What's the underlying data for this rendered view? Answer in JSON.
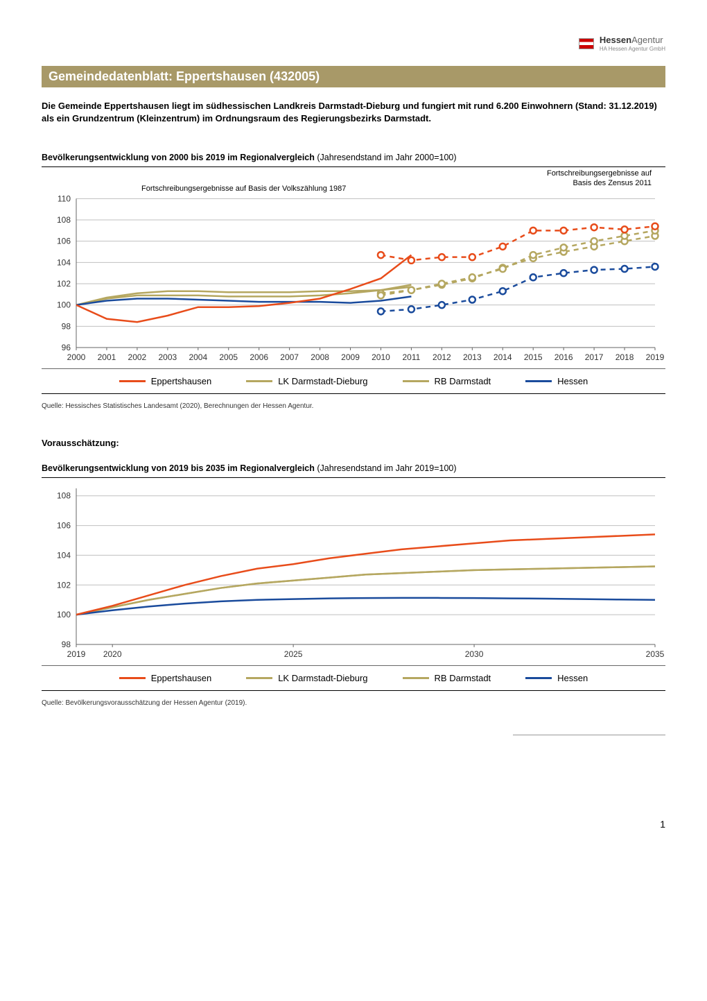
{
  "logo": {
    "brand_bold": "Hessen",
    "brand_light": "Agentur",
    "sub": "HA Hessen Agentur GmbH"
  },
  "title": "Gemeindedatenblatt: Eppertshausen (432005)",
  "intro": "Die Gemeinde Eppertshausen liegt im südhessischen Landkreis Darmstadt-Dieburg und fungiert mit rund 6.200 Einwohnern (Stand: 31.12.2019) als ein Grundzentrum (Kleinzentrum) im Ordnungsraum des Regierungsbezirks Darmstadt.",
  "chart1": {
    "title_bold": "Bevölkerungsentwicklung von 2000 bis 2019 im Regionalvergleich",
    "title_rest": " (Jahresendstand im Jahr 2000=100)",
    "note_left": "Fortschreibungsergebnisse auf Basis der Volkszählung 1987",
    "note_right": "Fortschreibungsergebnisse auf Basis des Zensus 2011",
    "x_years": [
      2000,
      2001,
      2002,
      2003,
      2004,
      2005,
      2006,
      2007,
      2008,
      2009,
      2010,
      2011,
      2012,
      2013,
      2014,
      2015,
      2016,
      2017,
      2018,
      2019
    ],
    "y_ticks": [
      96,
      98,
      100,
      102,
      104,
      106,
      108,
      110
    ],
    "ylim": [
      96,
      111
    ],
    "colors": {
      "eppertshausen": "#e84c1a",
      "lk": "#b5a760",
      "rb": "#b5a760",
      "hessen": "#1a4b9c",
      "grid": "#bfbfbf",
      "axis": "#666666",
      "text": "#333333"
    },
    "series": {
      "eppertshausen_solid": [
        100,
        98.7,
        98.4,
        99.0,
        99.8,
        99.8,
        99.9,
        100.2,
        100.6,
        101.5,
        102.5,
        104.7
      ],
      "eppertshausen_dash": [
        104.7,
        104.2,
        104.5,
        104.5,
        105.5,
        107.0,
        107.0,
        107.3,
        107.1,
        107.4
      ],
      "lk_solid": [
        100,
        100.7,
        101.1,
        101.3,
        101.3,
        101.2,
        101.2,
        101.2,
        101.3,
        101.3,
        101.4,
        101.7
      ],
      "lk_dash": [
        101.1,
        101.4,
        101.9,
        102.5,
        103.5,
        104.4,
        105.0,
        105.5,
        106.0,
        106.5
      ],
      "rb_solid": [
        100,
        100.6,
        100.9,
        100.9,
        100.9,
        100.8,
        100.8,
        100.8,
        100.9,
        101.1,
        101.4,
        101.9
      ],
      "rb_dash": [
        100.9,
        101.4,
        102.0,
        102.6,
        103.4,
        104.7,
        105.4,
        106.0,
        106.5,
        107.0
      ],
      "hessen_solid": [
        100,
        100.4,
        100.6,
        100.6,
        100.5,
        100.4,
        100.3,
        100.3,
        100.3,
        100.2,
        100.4,
        100.8
      ],
      "hessen_dash": [
        99.4,
        99.6,
        100.0,
        100.5,
        101.3,
        102.6,
        103.0,
        103.3,
        103.4,
        103.6
      ]
    },
    "split_index": 11,
    "source": "Quelle: Hessisches Statistisches Landesamt (2020), Berechnungen der Hessen Agentur."
  },
  "forecast_label": "Vorausschätzung:",
  "chart2": {
    "title_bold": "Bevölkerungsentwicklung von 2019 bis 2035 im Regionalvergleich",
    "title_rest": " (Jahresendstand im Jahr 2019=100)",
    "x_years": [
      2019,
      2020,
      2021,
      2022,
      2023,
      2024,
      2025,
      2026,
      2027,
      2028,
      2029,
      2030,
      2031,
      2032,
      2033,
      2034,
      2035
    ],
    "x_ticks": [
      2019,
      2020,
      2025,
      2030,
      2035
    ],
    "y_ticks": [
      98,
      100,
      102,
      104,
      106,
      108
    ],
    "ylim": [
      98,
      108.5
    ],
    "colors": {
      "eppertshausen": "#e84c1a",
      "lk": "#b5a760",
      "rb": "#b5a760",
      "hessen": "#1a4b9c",
      "grid": "#bfbfbf",
      "axis": "#666666"
    },
    "series": {
      "eppertshausen": [
        100,
        100.6,
        101.3,
        102.0,
        102.6,
        103.1,
        103.4,
        103.8,
        104.1,
        104.4,
        104.6,
        104.8,
        105.0,
        105.1,
        105.2,
        105.3,
        105.4
      ],
      "lk": [
        100,
        100.5,
        101.0,
        101.4,
        101.8,
        102.1,
        102.3,
        102.5,
        102.7,
        102.8,
        102.9,
        103.0,
        103.05,
        103.1,
        103.15,
        103.2,
        103.25
      ],
      "rb": [
        100,
        100.5,
        101.0,
        101.4,
        101.8,
        102.1,
        102.3,
        102.5,
        102.7,
        102.8,
        102.9,
        103.0,
        103.05,
        103.1,
        103.15,
        103.2,
        103.25
      ],
      "hessen": [
        100,
        100.3,
        100.55,
        100.75,
        100.9,
        101.0,
        101.05,
        101.1,
        101.12,
        101.13,
        101.13,
        101.12,
        101.1,
        101.08,
        101.05,
        101.02,
        101.0
      ]
    },
    "source": "Quelle: Bevölkerungsvorausschätzung der Hessen Agentur (2019)."
  },
  "legend": {
    "items": [
      {
        "label": "Eppertshausen",
        "color": "#e84c1a"
      },
      {
        "label": "LK Darmstadt-Dieburg",
        "color": "#b5a760"
      },
      {
        "label": "RB Darmstadt",
        "color": "#b5a760"
      },
      {
        "label": "Hessen",
        "color": "#1a4b9c"
      }
    ]
  },
  "page_number": "1"
}
